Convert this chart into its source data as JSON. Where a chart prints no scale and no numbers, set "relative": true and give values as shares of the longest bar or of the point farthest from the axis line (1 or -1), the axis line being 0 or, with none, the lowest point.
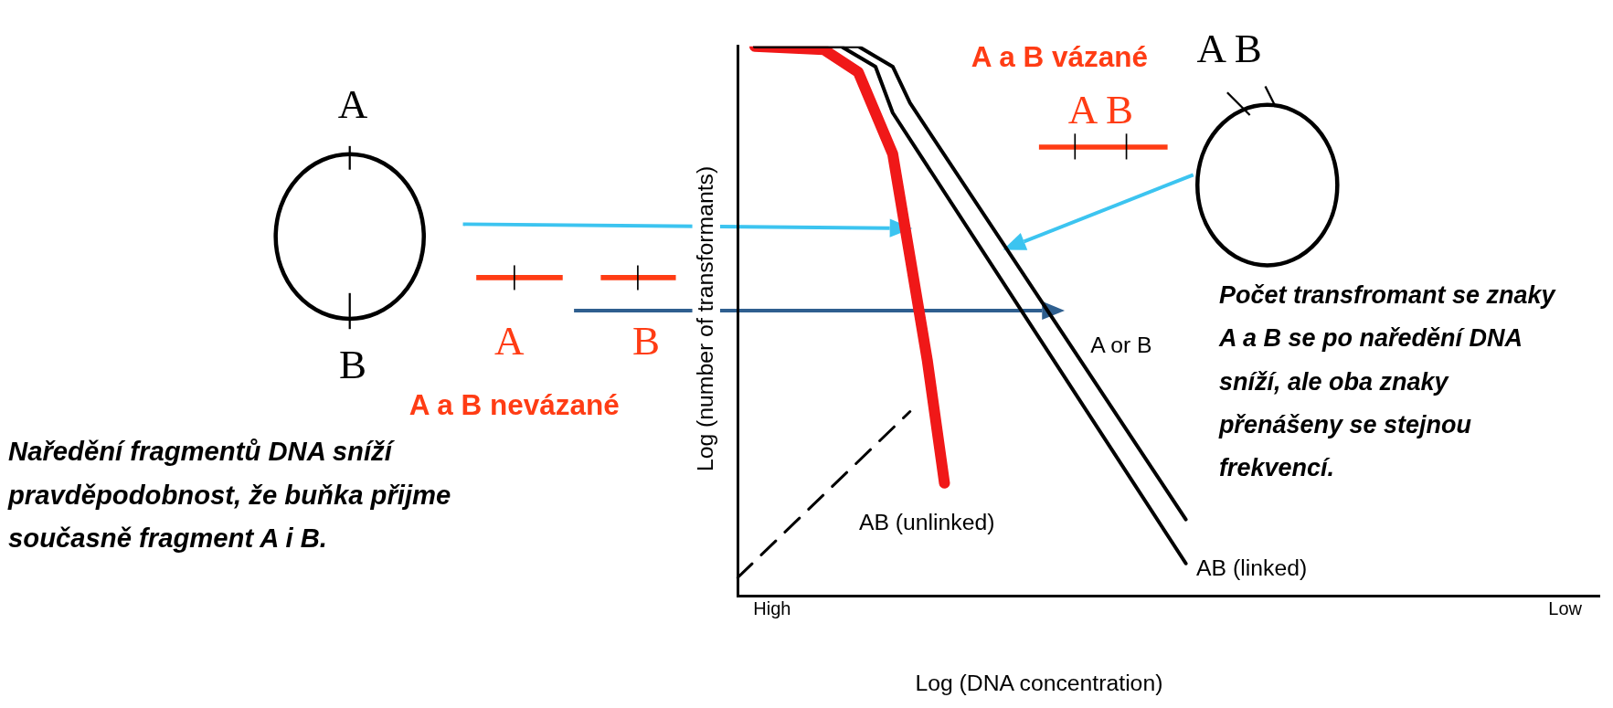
{
  "chart_data": {
    "type": "line",
    "relative": true,
    "xlabel": "Log (DNA concentration)",
    "ylabel": "Log (number of transformants)",
    "categories": [
      null,
      null,
      "High",
      null,
      null,
      null,
      null,
      null,
      null,
      null,
      null,
      null,
      null,
      null,
      null,
      null,
      null,
      null,
      null,
      null,
      null,
      null,
      null,
      null,
      null,
      null,
      null,
      null,
      null,
      null,
      null,
      null,
      null,
      null,
      null,
      null,
      null,
      null,
      null,
      null,
      null,
      null,
      null,
      null,
      null,
      null,
      null,
      null,
      "Low",
      null,
      null
    ],
    "grid": false,
    "legend": false,
    "marker": "none",
    "line_style": "solid",
    "series": [
      {
        "name": "A or B",
        "color": "#000000",
        "values": [
          null,
          1,
          null,
          null,
          null,
          null,
          null,
          1,
          null,
          0.963,
          0.897,
          null,
          null,
          null,
          null,
          null,
          null,
          null,
          null,
          null,
          null,
          null,
          null,
          null,
          null,
          null,
          0.14,
          null,
          null,
          null,
          null,
          null,
          null,
          null,
          null,
          null,
          null,
          null,
          null,
          null,
          null,
          null,
          null,
          null,
          null,
          null,
          null,
          null,
          null,
          null,
          null
        ]
      },
      {
        "name": "AB (linked)",
        "color": "#000000",
        "values": [
          null,
          1,
          null,
          null,
          null,
          null,
          1,
          null,
          0.963,
          0.879,
          null,
          null,
          null,
          null,
          null,
          null,
          null,
          null,
          null,
          null,
          null,
          null,
          null,
          null,
          null,
          null,
          0.06,
          null,
          null,
          null,
          null,
          null,
          null,
          null,
          null,
          null,
          null,
          null,
          null,
          null,
          null,
          null,
          null,
          null,
          null,
          null,
          null,
          null,
          null,
          null,
          null
        ]
      },
      {
        "name": "AB (unlinked)",
        "color": "#f01818",
        "values": [
          null,
          1,
          null,
          null,
          null,
          0.994,
          null,
          0.953,
          null,
          0.804,
          0.617,
          0.43,
          0.206,
          null,
          null,
          null,
          null,
          null,
          null,
          null,
          null,
          null,
          null,
          null,
          null,
          null,
          null,
          null,
          null,
          null,
          null,
          null,
          null,
          null,
          null,
          null,
          null,
          null,
          null,
          null,
          null,
          null,
          null,
          null,
          null,
          null,
          null,
          null,
          null,
          null,
          null
        ]
      },
      {
        "color": "#000000",
        "line_style": "dashed",
        "values": [
          0.034,
          null,
          null,
          null,
          null,
          null,
          null,
          null,
          null,
          null,
          0.336,
          null,
          null,
          null,
          null,
          null,
          null,
          null,
          null,
          null,
          null,
          null,
          null,
          null,
          null,
          null,
          null,
          null,
          null,
          null,
          null,
          null,
          null,
          null,
          null,
          null,
          null,
          null,
          null,
          null,
          null,
          null,
          null,
          null,
          null,
          null,
          null,
          null,
          null,
          null,
          null
        ]
      }
    ],
    "annotations": [
      "A",
      "B",
      "A",
      "B",
      "A a B nevázané",
      "Naředění fragmentů DNA sníží pravděpodobnost, že buňka přijme současně fragment A i B.",
      "A a B vázané",
      "A B",
      "A B",
      "Počet transfromant se znaky A a B se po naředění DNA sníží, ale oba znaky přenášeny se stejnou frekvencí."
    ]
  }
}
